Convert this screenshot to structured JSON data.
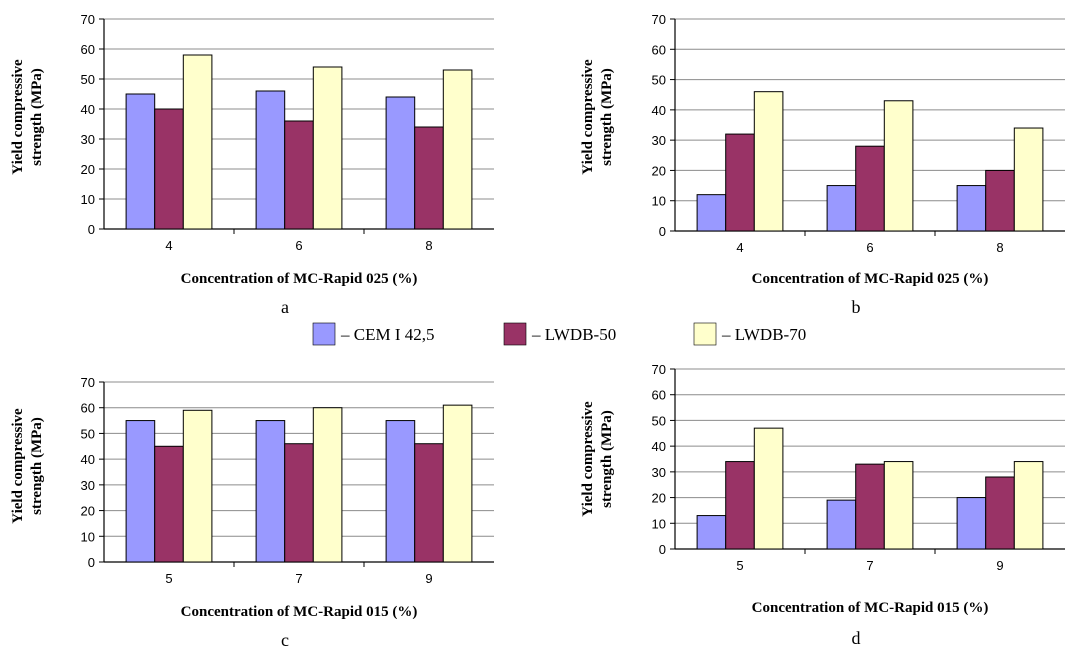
{
  "legend": [
    {
      "name": "CEM I 42,5",
      "label": "– CEM I 42,5",
      "color": "#9999ff"
    },
    {
      "name": "LWDB-50",
      "label": "– LWDB-50",
      "color": "#993366"
    },
    {
      "name": "LWDB-70",
      "label": "– LWDB-70",
      "color": "#ffffcc"
    }
  ],
  "chart_data": [
    {
      "panel": "a",
      "type": "bar",
      "categories": [
        "4",
        "6",
        "8"
      ],
      "series": [
        {
          "name": "CEM I 42,5",
          "values": [
            45,
            46,
            44
          ]
        },
        {
          "name": "LWDB-50",
          "values": [
            40,
            36,
            34
          ]
        },
        {
          "name": "LWDB-70",
          "values": [
            58,
            54,
            53
          ]
        }
      ],
      "xlabel": "Concentration of MC-Rapid 025 (%)",
      "ylabel_lines": [
        "Yield compressive",
        "strength (MPa)"
      ],
      "ylim": [
        0,
        70
      ],
      "yticks": [
        0,
        10,
        20,
        30,
        40,
        50,
        60,
        70
      ],
      "grid": true,
      "legend": "shared-center"
    },
    {
      "panel": "b",
      "type": "bar",
      "categories": [
        "4",
        "6",
        "8"
      ],
      "series": [
        {
          "name": "CEM I 42,5",
          "values": [
            12,
            15,
            15
          ]
        },
        {
          "name": "LWDB-50",
          "values": [
            32,
            28,
            20
          ]
        },
        {
          "name": "LWDB-70",
          "values": [
            46,
            43,
            34
          ]
        }
      ],
      "xlabel": "Concentration of MC-Rapid 025 (%)",
      "ylabel_lines": [
        "Yield compressive",
        "strength (MPa)"
      ],
      "ylim": [
        0,
        70
      ],
      "yticks": [
        0,
        10,
        20,
        30,
        40,
        50,
        60,
        70
      ],
      "grid": true,
      "legend": "shared-center"
    },
    {
      "panel": "c",
      "type": "bar",
      "categories": [
        "5",
        "7",
        "9"
      ],
      "series": [
        {
          "name": "CEM I 42,5",
          "values": [
            55,
            55,
            55
          ]
        },
        {
          "name": "LWDB-50",
          "values": [
            45,
            46,
            46
          ]
        },
        {
          "name": "LWDB-70",
          "values": [
            59,
            60,
            61
          ]
        }
      ],
      "xlabel": "Concentration of MC-Rapid 015 (%)",
      "ylabel_lines": [
        "Yield compressive",
        "strength (MPa)"
      ],
      "ylim": [
        0,
        70
      ],
      "yticks": [
        0,
        10,
        20,
        30,
        40,
        50,
        60,
        70
      ],
      "grid": true,
      "legend": "shared-center"
    },
    {
      "panel": "d",
      "type": "bar",
      "categories": [
        "5",
        "7",
        "9"
      ],
      "series": [
        {
          "name": "CEM I 42,5",
          "values": [
            13,
            19,
            20
          ]
        },
        {
          "name": "LWDB-50",
          "values": [
            34,
            33,
            28
          ]
        },
        {
          "name": "LWDB-70",
          "values": [
            47,
            34,
            34
          ]
        }
      ],
      "xlabel": "Concentration of MC-Rapid 015 (%)",
      "ylabel_lines": [
        "Yield compressive",
        "strength (MPa)"
      ],
      "ylim": [
        0,
        70
      ],
      "yticks": [
        0,
        10,
        20,
        30,
        40,
        50,
        60,
        70
      ],
      "grid": true,
      "legend": "shared-center"
    }
  ]
}
